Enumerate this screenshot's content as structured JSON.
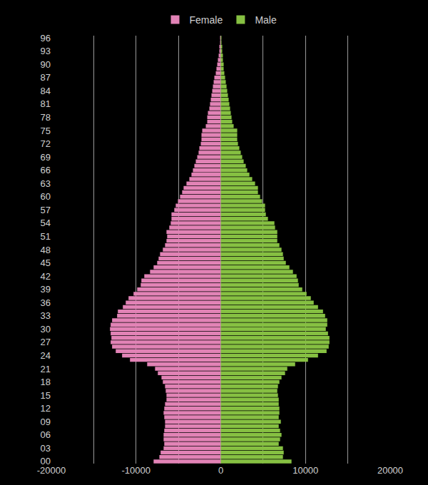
{
  "chart_data": {
    "type": "bar",
    "orientation": "horizontal",
    "categories": [
      "00",
      null,
      null,
      "03",
      null,
      null,
      "06",
      null,
      null,
      "09",
      null,
      null,
      "12",
      null,
      null,
      "15",
      null,
      null,
      "18",
      null,
      null,
      "21",
      null,
      null,
      "24",
      null,
      null,
      "27",
      null,
      null,
      "30",
      null,
      null,
      "33",
      null,
      null,
      "36",
      null,
      null,
      "39",
      null,
      null,
      "42",
      null,
      null,
      "45",
      null,
      null,
      "48",
      null,
      null,
      "51",
      null,
      null,
      "54",
      null,
      null,
      "57",
      null,
      null,
      "60",
      null,
      null,
      "63",
      null,
      null,
      "66",
      null,
      null,
      "69",
      null,
      null,
      "72",
      null,
      null,
      "75",
      null,
      null,
      "78",
      null,
      null,
      "81",
      null,
      null,
      "84",
      null,
      null,
      "87",
      null,
      null,
      "90",
      null,
      null,
      "93",
      null,
      null,
      "96"
    ],
    "series": [
      {
        "name": "Female",
        "color": "#e283b6",
        "values": [
          -7930,
          -7250,
          -7100,
          -6750,
          -6670,
          -6750,
          -6750,
          -6670,
          -6580,
          -6580,
          -6670,
          -6750,
          -6670,
          -6580,
          -6410,
          -6410,
          -6500,
          -6580,
          -6840,
          -7000,
          -7430,
          -7760,
          -8690,
          -10720,
          -11650,
          -12400,
          -12830,
          -13000,
          -12910,
          -13000,
          -13080,
          -13000,
          -12830,
          -12240,
          -12150,
          -11560,
          -11220,
          -10890,
          -10300,
          -9870,
          -9450,
          -9370,
          -9030,
          -8350,
          -7930,
          -7510,
          -7340,
          -7170,
          -6840,
          -6580,
          -6410,
          -6330,
          -6410,
          -6080,
          -5910,
          -5820,
          -5820,
          -5490,
          -5320,
          -5060,
          -4810,
          -4560,
          -4390,
          -4050,
          -3710,
          -3460,
          -3290,
          -3120,
          -2950,
          -2780,
          -2620,
          -2530,
          -2360,
          -2280,
          -2280,
          -2190,
          -1770,
          -1600,
          -1600,
          -1520,
          -1350,
          -1270,
          -1180,
          -1100,
          -1010,
          -930,
          -840,
          -760,
          -590,
          -510,
          -420,
          -340,
          -250,
          -170,
          -170,
          -80,
          -80
        ]
      },
      {
        "name": "Male",
        "color": "#86c042",
        "values": [
          8350,
          7340,
          7430,
          7340,
          6840,
          7000,
          7170,
          7000,
          6840,
          7090,
          6840,
          6920,
          6920,
          6840,
          6840,
          6750,
          6670,
          6750,
          6920,
          7170,
          7590,
          7850,
          8780,
          10300,
          11480,
          12490,
          12740,
          12830,
          12830,
          12660,
          12400,
          12570,
          12570,
          12320,
          12070,
          11480,
          10970,
          10630,
          10130,
          9620,
          9200,
          9110,
          8950,
          8520,
          8100,
          7680,
          7430,
          7340,
          7170,
          6920,
          6670,
          6670,
          6670,
          6410,
          6330,
          5570,
          5320,
          5230,
          5230,
          4890,
          4640,
          4390,
          4390,
          4050,
          3710,
          3380,
          3120,
          2950,
          2700,
          2530,
          2360,
          2190,
          2030,
          1940,
          1940,
          1940,
          1520,
          1350,
          1270,
          1180,
          1100,
          1010,
          930,
          840,
          760,
          680,
          590,
          510,
          420,
          340,
          340,
          250,
          250,
          170,
          170,
          80,
          80
        ]
      }
    ],
    "xlim": [
      -20000,
      20000
    ],
    "xticks": [
      -20000,
      -10000,
      0,
      10000,
      20000
    ],
    "grid": true,
    "legend": "top"
  }
}
